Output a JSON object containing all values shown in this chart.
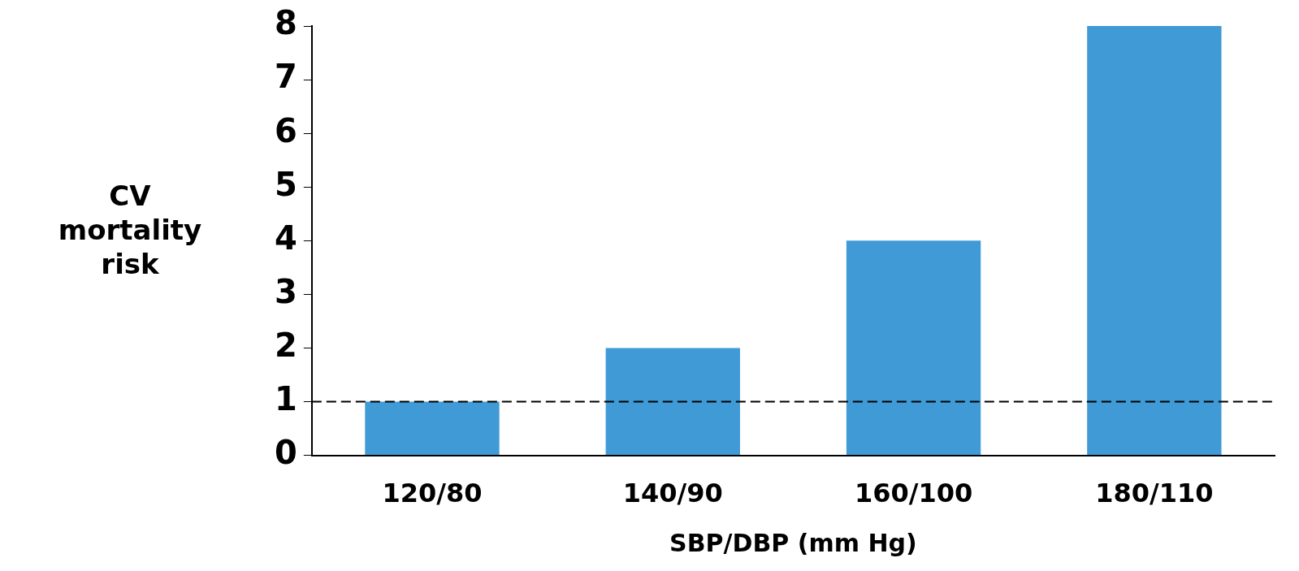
{
  "chart_data": {
    "type": "bar",
    "xlabel": "SBP/DBP (mm Hg)",
    "ylabel": "CV mortality risk",
    "categories": [
      "120/80",
      "140/90",
      "160/100",
      "180/110"
    ],
    "values": [
      1,
      2,
      4,
      8
    ],
    "color": "#3f9ad6",
    "ylim": [
      0,
      8
    ],
    "yticks": [
      0,
      1,
      2,
      3,
      4,
      5,
      6,
      7,
      8
    ],
    "grid": false,
    "legend": false,
    "ref_lines": [
      {
        "axis": "y",
        "value": 1,
        "line_style": "dashed",
        "color": "#000000"
      }
    ]
  }
}
